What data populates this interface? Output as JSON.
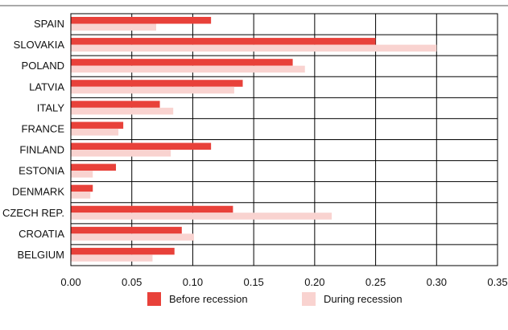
{
  "chart_data": {
    "type": "bar",
    "orientation": "horizontal",
    "categories": [
      "SPAIN",
      "SLOVAKIA",
      "POLAND",
      "LATVIA",
      "ITALY",
      "FRANCE",
      "FINLAND",
      "ESTONIA",
      "DENMARK",
      "CZECH REP.",
      "CROATIA",
      "BELGIUM"
    ],
    "series": [
      {
        "name": "Before recession",
        "color": "#e8413a",
        "values": [
          0.115,
          0.25,
          0.182,
          0.141,
          0.073,
          0.043,
          0.115,
          0.037,
          0.018,
          0.133,
          0.091,
          0.085
        ]
      },
      {
        "name": "During recession",
        "color": "#f9d3d0",
        "values": [
          0.07,
          0.3,
          0.192,
          0.134,
          0.084,
          0.039,
          0.082,
          0.018,
          0.016,
          0.214,
          0.101,
          0.067
        ]
      }
    ],
    "xlim": [
      0,
      0.35
    ],
    "xticks": [
      "0.00",
      "0.05",
      "0.10",
      "0.15",
      "0.20",
      "0.25",
      "0.30",
      "0.35"
    ],
    "grid": true,
    "legend_position": "bottom"
  }
}
